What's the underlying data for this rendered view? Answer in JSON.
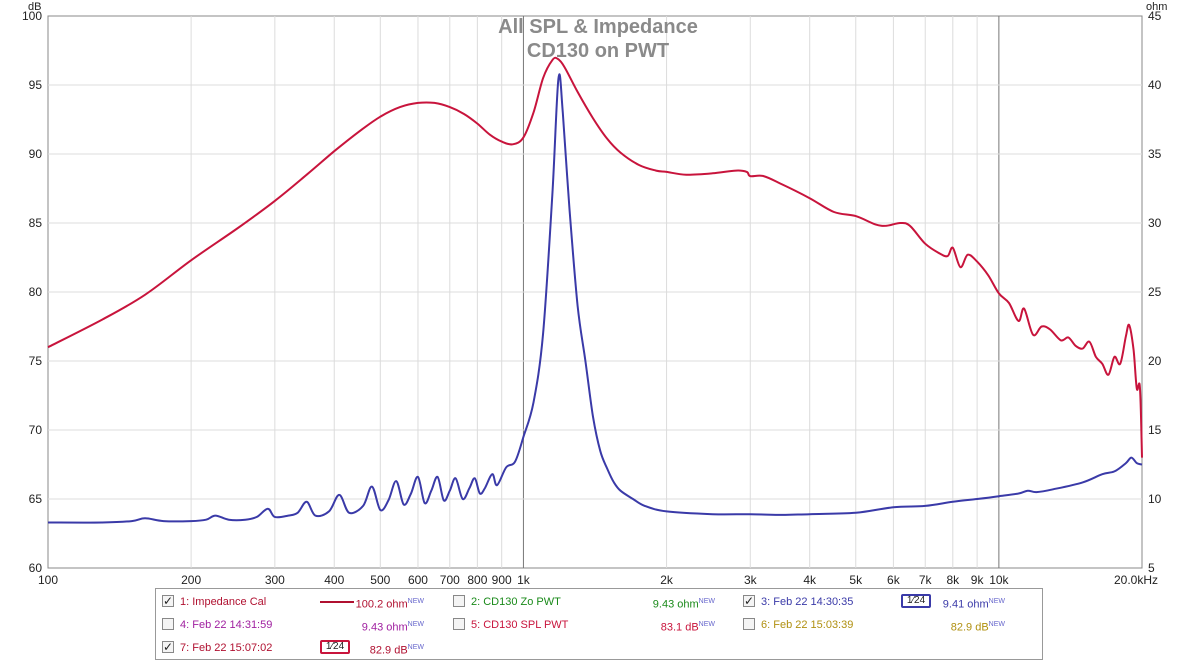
{
  "chart_data": {
    "type": "line",
    "title": "All SPL & Impedance",
    "subtitle": "CD130 on PWT",
    "ylabel_left": "dB",
    "ylabel_right": "ohm",
    "x_scale": "log",
    "xlim": [
      100,
      20000
    ],
    "ylim_left": [
      60,
      100
    ],
    "ylim_right": [
      5,
      45
    ],
    "grid": true,
    "x_tick_labels": [
      {
        "v": 100,
        "label": "100"
      },
      {
        "v": 200,
        "label": "200"
      },
      {
        "v": 300,
        "label": "300"
      },
      {
        "v": 400,
        "label": "400"
      },
      {
        "v": 500,
        "label": "500"
      },
      {
        "v": 600,
        "label": "600"
      },
      {
        "v": 700,
        "label": "700"
      },
      {
        "v": 800,
        "label": "800"
      },
      {
        "v": 900,
        "label": "900"
      },
      {
        "v": 1000,
        "label": "1k"
      },
      {
        "v": 2000,
        "label": "2k"
      },
      {
        "v": 3000,
        "label": "3k"
      },
      {
        "v": 4000,
        "label": "4k"
      },
      {
        "v": 5000,
        "label": "5k"
      },
      {
        "v": 6000,
        "label": "6k"
      },
      {
        "v": 7000,
        "label": "7k"
      },
      {
        "v": 8000,
        "label": "8k"
      },
      {
        "v": 9000,
        "label": "9k"
      },
      {
        "v": 10000,
        "label": "10k"
      },
      {
        "v": 20000,
        "label": "20.0kHz"
      }
    ],
    "y_left_ticks": [
      "60",
      "65",
      "70",
      "75",
      "80",
      "85",
      "90",
      "95",
      "100"
    ],
    "y_right_ticks": [
      "5",
      "10",
      "15",
      "20",
      "25",
      "30",
      "35",
      "40",
      "45"
    ],
    "series": [
      {
        "name": "CD130 SPL PWT",
        "axis": "left",
        "color": "#c8143c",
        "points": [
          [
            100,
            76.0
          ],
          [
            130,
            78.0
          ],
          [
            160,
            79.8
          ],
          [
            200,
            82.3
          ],
          [
            250,
            84.6
          ],
          [
            300,
            86.6
          ],
          [
            350,
            88.5
          ],
          [
            400,
            90.2
          ],
          [
            450,
            91.6
          ],
          [
            500,
            92.7
          ],
          [
            550,
            93.4
          ],
          [
            600,
            93.7
          ],
          [
            650,
            93.7
          ],
          [
            700,
            93.4
          ],
          [
            750,
            92.9
          ],
          [
            800,
            92.2
          ],
          [
            850,
            91.4
          ],
          [
            900,
            90.9
          ],
          [
            950,
            90.7
          ],
          [
            1000,
            91.2
          ],
          [
            1050,
            93.0
          ],
          [
            1100,
            95.5
          ],
          [
            1150,
            96.8
          ],
          [
            1180,
            96.9
          ],
          [
            1220,
            96.3
          ],
          [
            1300,
            94.5
          ],
          [
            1400,
            92.6
          ],
          [
            1500,
            91.1
          ],
          [
            1600,
            90.1
          ],
          [
            1750,
            89.2
          ],
          [
            1900,
            88.8
          ],
          [
            2000,
            88.7
          ],
          [
            2200,
            88.5
          ],
          [
            2500,
            88.6
          ],
          [
            2800,
            88.8
          ],
          [
            2950,
            88.7
          ],
          [
            3000,
            88.4
          ],
          [
            3200,
            88.4
          ],
          [
            3500,
            87.8
          ],
          [
            4000,
            86.8
          ],
          [
            4500,
            85.8
          ],
          [
            5000,
            85.5
          ],
          [
            5500,
            84.9
          ],
          [
            5800,
            84.8
          ],
          [
            6200,
            85.0
          ],
          [
            6500,
            84.8
          ],
          [
            7000,
            83.5
          ],
          [
            7500,
            82.8
          ],
          [
            7800,
            82.6
          ],
          [
            8000,
            83.2
          ],
          [
            8300,
            81.8
          ],
          [
            8600,
            82.7
          ],
          [
            9000,
            82.2
          ],
          [
            9500,
            81.2
          ],
          [
            10000,
            79.9
          ],
          [
            10500,
            79.2
          ],
          [
            11000,
            77.9
          ],
          [
            11300,
            78.8
          ],
          [
            11800,
            76.9
          ],
          [
            12300,
            77.5
          ],
          [
            12800,
            77.3
          ],
          [
            13500,
            76.5
          ],
          [
            14000,
            76.7
          ],
          [
            14500,
            76.1
          ],
          [
            15000,
            75.9
          ],
          [
            15500,
            76.4
          ],
          [
            16000,
            75.3
          ],
          [
            16500,
            74.8
          ],
          [
            17000,
            74.0
          ],
          [
            17500,
            75.3
          ],
          [
            18000,
            74.8
          ],
          [
            18500,
            76.8
          ],
          [
            18800,
            77.6
          ],
          [
            19200,
            75.8
          ],
          [
            19500,
            73.0
          ],
          [
            19800,
            73.1
          ],
          [
            20000,
            68.0
          ]
        ]
      },
      {
        "name": "Feb 22 14:30:35",
        "axis": "right",
        "color": "#3a3aa8",
        "points": [
          [
            100,
            8.3
          ],
          [
            130,
            8.3
          ],
          [
            150,
            8.4
          ],
          [
            160,
            8.6
          ],
          [
            175,
            8.4
          ],
          [
            200,
            8.4
          ],
          [
            215,
            8.5
          ],
          [
            225,
            8.8
          ],
          [
            240,
            8.5
          ],
          [
            260,
            8.5
          ],
          [
            275,
            8.7
          ],
          [
            290,
            9.3
          ],
          [
            300,
            8.7
          ],
          [
            320,
            8.8
          ],
          [
            335,
            9.0
          ],
          [
            350,
            9.8
          ],
          [
            365,
            8.8
          ],
          [
            390,
            9.1
          ],
          [
            410,
            10.3
          ],
          [
            430,
            9.0
          ],
          [
            460,
            9.5
          ],
          [
            480,
            10.9
          ],
          [
            500,
            9.2
          ],
          [
            520,
            9.9
          ],
          [
            540,
            11.3
          ],
          [
            560,
            9.6
          ],
          [
            580,
            10.4
          ],
          [
            600,
            11.6
          ],
          [
            620,
            9.7
          ],
          [
            640,
            10.6
          ],
          [
            660,
            11.6
          ],
          [
            680,
            9.9
          ],
          [
            700,
            10.6
          ],
          [
            720,
            11.5
          ],
          [
            745,
            10.0
          ],
          [
            770,
            10.8
          ],
          [
            790,
            11.5
          ],
          [
            810,
            10.4
          ],
          [
            830,
            10.8
          ],
          [
            860,
            11.8
          ],
          [
            880,
            11.0
          ],
          [
            920,
            12.3
          ],
          [
            960,
            12.7
          ],
          [
            1000,
            14.5
          ],
          [
            1050,
            17.0
          ],
          [
            1100,
            22.0
          ],
          [
            1150,
            32.0
          ],
          [
            1185,
            40.5
          ],
          [
            1210,
            38.0
          ],
          [
            1250,
            31.0
          ],
          [
            1300,
            24.0
          ],
          [
            1350,
            20.0
          ],
          [
            1400,
            16.0
          ],
          [
            1450,
            13.5
          ],
          [
            1500,
            12.2
          ],
          [
            1550,
            11.2
          ],
          [
            1600,
            10.6
          ],
          [
            1700,
            10.0
          ],
          [
            1800,
            9.5
          ],
          [
            2000,
            9.1
          ],
          [
            2500,
            8.9
          ],
          [
            3000,
            8.9
          ],
          [
            3500,
            8.85
          ],
          [
            4000,
            8.9
          ],
          [
            5000,
            9.0
          ],
          [
            6000,
            9.4
          ],
          [
            7000,
            9.5
          ],
          [
            8000,
            9.8
          ],
          [
            9000,
            10.0
          ],
          [
            10000,
            10.2
          ],
          [
            11000,
            10.4
          ],
          [
            11500,
            10.6
          ],
          [
            12000,
            10.5
          ],
          [
            13000,
            10.7
          ],
          [
            15000,
            11.2
          ],
          [
            16500,
            11.8
          ],
          [
            17500,
            12.0
          ],
          [
            18500,
            12.6
          ],
          [
            19000,
            13.0
          ],
          [
            19500,
            12.6
          ],
          [
            20000,
            12.5
          ]
        ]
      }
    ]
  },
  "legend": {
    "items": [
      {
        "index": "1",
        "name": "1: Impedance Cal",
        "checked": true,
        "name_color": "#b01030",
        "value": "100.2 ohm",
        "value_color": "#b01030",
        "marker": "line",
        "marker_color": "#b01030",
        "badge": "NEW"
      },
      {
        "index": "2",
        "name": "2: CD130 Zo PWT",
        "checked": false,
        "name_color": "#1a8a1a",
        "value": "9.43 ohm",
        "value_color": "#1a8a1a",
        "marker": "none",
        "badge": "NEW"
      },
      {
        "index": "3",
        "name": "3: Feb 22 14:30:35",
        "checked": true,
        "name_color": "#3a3aa8",
        "value": "9.41 ohm",
        "value_color": "#3a3aa8",
        "marker": "box",
        "marker_color": "#3a3aa8",
        "marker_label": "1⁄24",
        "badge": "NEW"
      },
      {
        "index": "4",
        "name": "4: Feb 22 14:31:59",
        "checked": false,
        "name_color": "#a020a0",
        "value": "9.43 ohm",
        "value_color": "#a020a0",
        "marker": "none",
        "badge": "NEW"
      },
      {
        "index": "5",
        "name": "5: CD130 SPL PWT",
        "checked": false,
        "name_color": "#c8143c",
        "value": "83.1 dB",
        "value_color": "#c8143c",
        "marker": "none",
        "badge": "NEW"
      },
      {
        "index": "6",
        "name": "6: Feb 22 15:03:39",
        "checked": false,
        "name_color": "#b09010",
        "value": "82.9 dB",
        "value_color": "#b09010",
        "marker": "none",
        "badge": "NEW"
      },
      {
        "index": "7",
        "name": "7: Feb 22 15:07:02",
        "checked": true,
        "name_color": "#b01030",
        "value": "82.9 dB",
        "value_color": "#b01030",
        "marker": "box",
        "marker_color": "#c8143c",
        "marker_label": "1⁄24",
        "badge": "NEW"
      }
    ]
  }
}
